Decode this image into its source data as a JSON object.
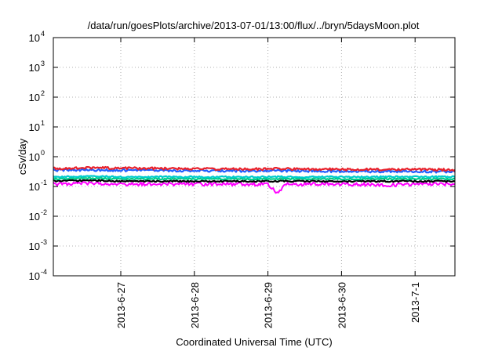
{
  "chart_data": {
    "type": "line",
    "title": "/data/run/goesPlots/archive/2013-07-01/13:00/flux/../bryn/5daysMoon.plot",
    "xlabel": "Coordinated Universal Time (UTC)",
    "ylabel": "cSv/day",
    "yscale": "log",
    "ylim": [
      0.0001,
      10000
    ],
    "xlim": [
      "2013-06-26 02:00",
      "2013-07-01 13:00"
    ],
    "grid": true,
    "x_ticks": [
      {
        "date": "2013-06-27",
        "label": "2013-6-27"
      },
      {
        "date": "2013-06-28",
        "label": "2013-6-28"
      },
      {
        "date": "2013-06-29",
        "label": "2013-6-29"
      },
      {
        "date": "2013-06-30",
        "label": "2013-6-30"
      },
      {
        "date": "2013-07-01",
        "label": "2013-7-1"
      }
    ],
    "y_ticks": [
      {
        "value": 0.0001,
        "mantissa": "10",
        "exp": "-4"
      },
      {
        "value": 0.001,
        "mantissa": "10",
        "exp": "-3"
      },
      {
        "value": 0.01,
        "mantissa": "10",
        "exp": "-2"
      },
      {
        "value": 0.1,
        "mantissa": "10",
        "exp": "-1"
      },
      {
        "value": 1,
        "mantissa": "10",
        "exp": "0"
      },
      {
        "value": 10,
        "mantissa": "10",
        "exp": "1"
      },
      {
        "value": 100,
        "mantissa": "10",
        "exp": "2"
      },
      {
        "value": 1000,
        "mantissa": "10",
        "exp": "3"
      },
      {
        "value": 10000,
        "mantissa": "10",
        "exp": "4"
      }
    ],
    "series": [
      {
        "color": "#ff00ff",
        "values": [
          [
            "2013-06-26 02:00",
            0.12
          ],
          [
            "2013-06-26 14:00",
            0.13
          ],
          [
            "2013-06-27 02:00",
            0.12
          ],
          [
            "2013-06-27 14:00",
            0.12
          ],
          [
            "2013-06-28 02:00",
            0.12
          ],
          [
            "2013-06-28 14:00",
            0.12
          ],
          [
            "2013-06-29 00:00",
            0.12
          ],
          [
            "2013-06-29 03:00",
            0.06
          ],
          [
            "2013-06-29 06:00",
            0.12
          ],
          [
            "2013-06-29 14:00",
            0.12
          ],
          [
            "2013-06-30 02:00",
            0.12
          ],
          [
            "2013-06-30 14:00",
            0.11
          ],
          [
            "2013-07-01 02:00",
            0.12
          ],
          [
            "2013-07-01 13:00",
            0.12
          ]
        ]
      },
      {
        "color": "#000000",
        "values": [
          [
            "2013-06-26 02:00",
            0.15
          ],
          [
            "2013-06-26 14:00",
            0.16
          ],
          [
            "2013-06-27 02:00",
            0.15
          ],
          [
            "2013-06-27 14:00",
            0.15
          ],
          [
            "2013-06-28 02:00",
            0.15
          ],
          [
            "2013-06-28 14:00",
            0.15
          ],
          [
            "2013-06-29 02:00",
            0.15
          ],
          [
            "2013-06-29 14:00",
            0.15
          ],
          [
            "2013-06-30 02:00",
            0.15
          ],
          [
            "2013-06-30 14:00",
            0.15
          ],
          [
            "2013-07-01 02:00",
            0.15
          ],
          [
            "2013-07-01 13:00",
            0.15
          ]
        ]
      },
      {
        "color": "#00cc88",
        "values": [
          [
            "2013-06-26 02:00",
            0.18
          ],
          [
            "2013-06-26 14:00",
            0.19
          ],
          [
            "2013-06-27 02:00",
            0.18
          ],
          [
            "2013-06-27 14:00",
            0.18
          ],
          [
            "2013-06-28 02:00",
            0.18
          ],
          [
            "2013-06-28 14:00",
            0.18
          ],
          [
            "2013-06-29 02:00",
            0.18
          ],
          [
            "2013-06-29 14:00",
            0.18
          ],
          [
            "2013-06-30 02:00",
            0.18
          ],
          [
            "2013-06-30 14:00",
            0.18
          ],
          [
            "2013-07-01 02:00",
            0.18
          ],
          [
            "2013-07-01 13:00",
            0.18
          ]
        ]
      },
      {
        "color": "#00cccc",
        "values": [
          [
            "2013-06-26 02:00",
            0.21
          ],
          [
            "2013-06-26 14:00",
            0.22
          ],
          [
            "2013-06-27 02:00",
            0.21
          ],
          [
            "2013-06-27 14:00",
            0.21
          ],
          [
            "2013-06-28 02:00",
            0.21
          ],
          [
            "2013-06-28 14:00",
            0.21
          ],
          [
            "2013-06-29 02:00",
            0.21
          ],
          [
            "2013-06-29 14:00",
            0.21
          ],
          [
            "2013-06-30 02:00",
            0.21
          ],
          [
            "2013-06-30 14:00",
            0.21
          ],
          [
            "2013-07-01 02:00",
            0.21
          ],
          [
            "2013-07-01 13:00",
            0.21
          ]
        ]
      },
      {
        "color": "#1f5fff",
        "values": [
          [
            "2013-06-26 02:00",
            0.35
          ],
          [
            "2013-06-26 14:00",
            0.36
          ],
          [
            "2013-06-27 02:00",
            0.35
          ],
          [
            "2013-06-27 14:00",
            0.34
          ],
          [
            "2013-06-28 02:00",
            0.34
          ],
          [
            "2013-06-28 14:00",
            0.33
          ],
          [
            "2013-06-29 02:00",
            0.34
          ],
          [
            "2013-06-29 14:00",
            0.33
          ],
          [
            "2013-06-30 02:00",
            0.32
          ],
          [
            "2013-06-30 14:00",
            0.32
          ],
          [
            "2013-07-01 02:00",
            0.32
          ],
          [
            "2013-07-01 13:00",
            0.31
          ]
        ]
      },
      {
        "color": "#e8202a",
        "values": [
          [
            "2013-06-26 02:00",
            0.4
          ],
          [
            "2013-06-26 14:00",
            0.42
          ],
          [
            "2013-06-27 02:00",
            0.41
          ],
          [
            "2013-06-27 14:00",
            0.4
          ],
          [
            "2013-06-28 02:00",
            0.39
          ],
          [
            "2013-06-28 14:00",
            0.38
          ],
          [
            "2013-06-29 02:00",
            0.39
          ],
          [
            "2013-06-29 14:00",
            0.38
          ],
          [
            "2013-06-30 02:00",
            0.37
          ],
          [
            "2013-06-30 14:00",
            0.37
          ],
          [
            "2013-07-01 02:00",
            0.37
          ],
          [
            "2013-07-01 13:00",
            0.36
          ]
        ]
      }
    ]
  }
}
